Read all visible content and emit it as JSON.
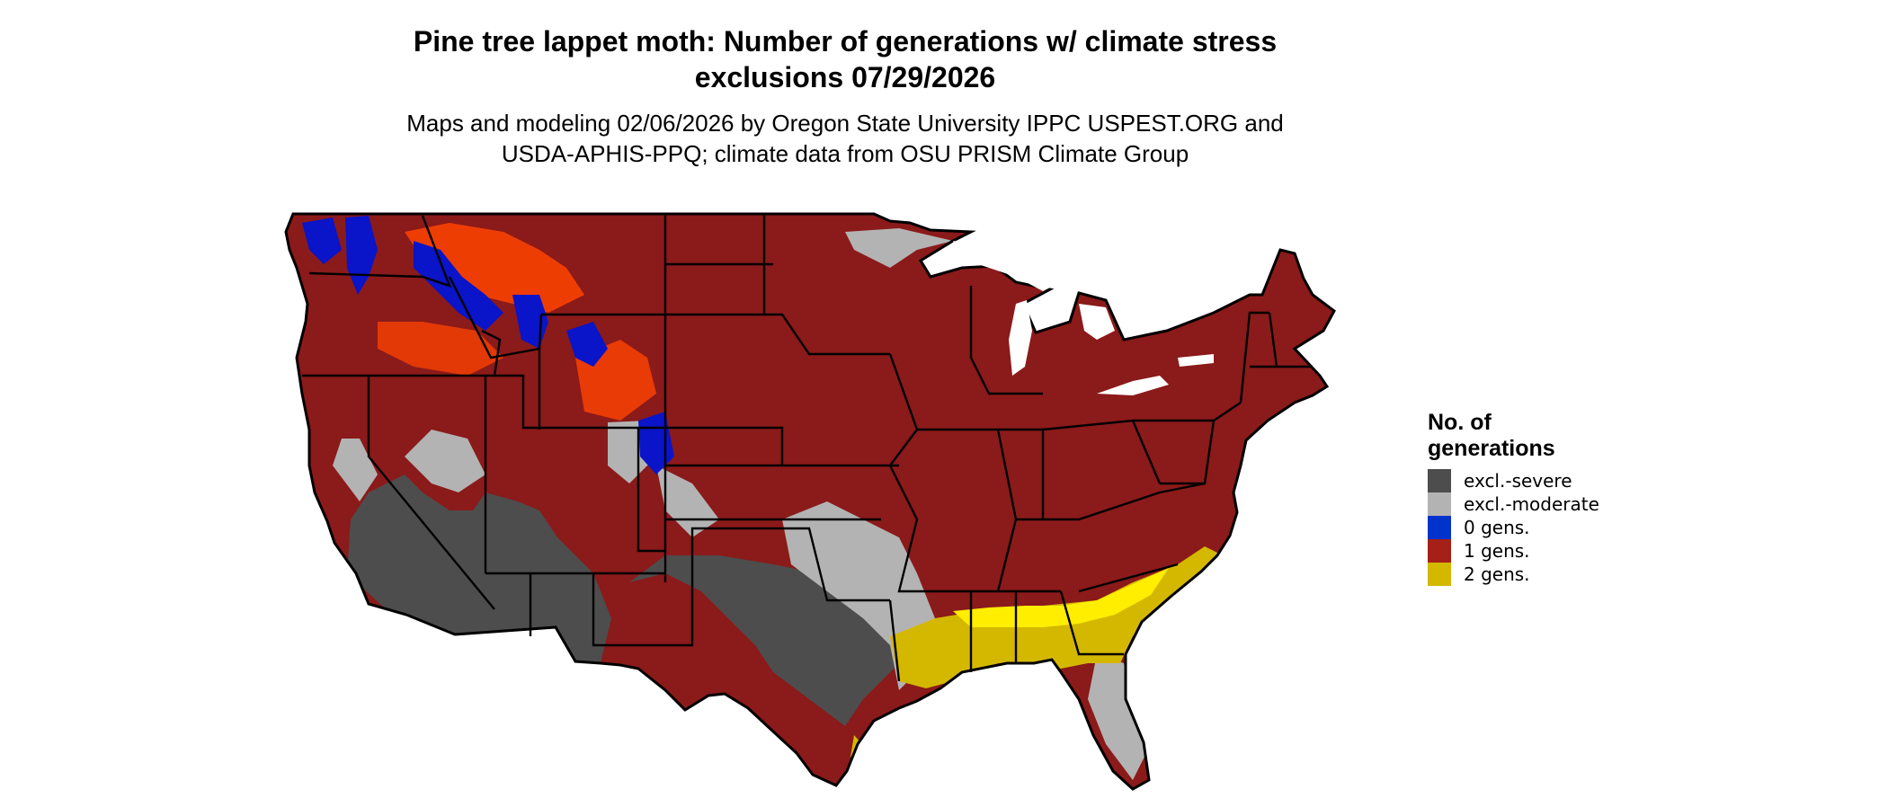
{
  "header": {
    "title_line1": "Pine tree lappet moth: Number of generations w/ climate stress",
    "title_line2": "exclusions 07/29/2026",
    "subtitle_line1": "Maps and modeling 02/06/2026 by Oregon State University IPPC USPEST.ORG and",
    "subtitle_line2": "USDA-APHIS-PPQ; climate data from OSU PRISM Climate Group"
  },
  "legend": {
    "title_line1": "No. of",
    "title_line2": "generations",
    "items": [
      {
        "label": "excl.-severe",
        "color": "#4d4d4d"
      },
      {
        "label": "excl.-moderate",
        "color": "#b3b3b3"
      },
      {
        "label": "0 gens.",
        "color": "#0033cc"
      },
      {
        "label": "1 gens.",
        "color": "#a52017"
      },
      {
        "label": "2 gens.",
        "color": "#d4b800"
      }
    ]
  },
  "map_colors": {
    "severe": "#4d4d4d",
    "moderate": "#b3b3b3",
    "zero": "#0a14c8",
    "one": "#8b1a1a",
    "one_alt": "#ff4400",
    "two": "#d4b800",
    "two_light": "#ffee00",
    "border": "#000000"
  }
}
